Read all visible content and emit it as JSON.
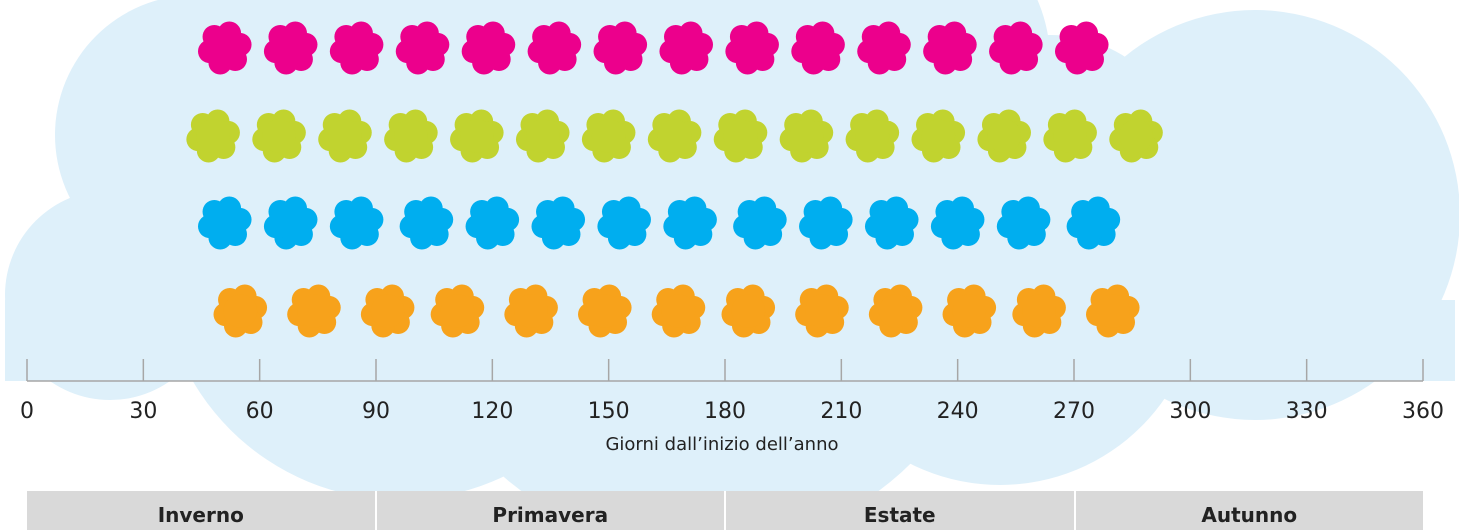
{
  "chart_data": {
    "type": "scatter",
    "xlabel": "Giorni dall’inizio dell’anno",
    "xlim": [
      0,
      360
    ],
    "x_ticks": [
      0,
      30,
      60,
      90,
      120,
      150,
      180,
      210,
      240,
      270,
      300,
      330,
      360
    ],
    "grid": false,
    "series": [
      {
        "color": "#ec008c",
        "icon": "flower-icon",
        "x": [
          51,
          68,
          85,
          102,
          119,
          136,
          153,
          170,
          187,
          204,
          221,
          238,
          255,
          272
        ]
      },
      {
        "color": "#c1d32f",
        "icon": "flower-icon",
        "x": [
          48,
          65,
          82,
          99,
          116,
          133,
          150,
          167,
          184,
          201,
          218,
          235,
          252,
          269,
          286
        ]
      },
      {
        "color": "#00aeef",
        "icon": "flower-icon",
        "x": [
          51,
          68,
          85,
          103,
          120,
          137,
          154,
          171,
          189,
          206,
          223,
          240,
          257,
          275
        ]
      },
      {
        "color": "#f7a21b",
        "icon": "flower-icon",
        "x": [
          55,
          74,
          93,
          111,
          130,
          149,
          168,
          186,
          205,
          224,
          243,
          261,
          280
        ]
      }
    ]
  },
  "seasons": [
    "Inverno",
    "Primavera",
    "Estate",
    "Autunno"
  ],
  "colors": {
    "cloud": "#def0fa",
    "axis": "#a6a6a6",
    "season_strip": "#d9d9d9"
  }
}
